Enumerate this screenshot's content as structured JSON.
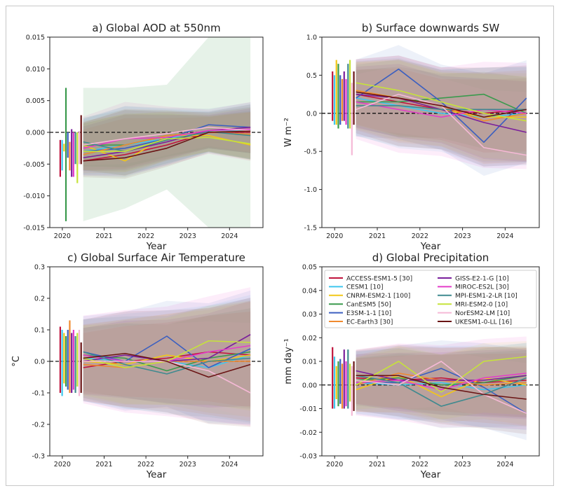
{
  "legend_entries": [
    {
      "name": "ACCESS-ESM1-5 [30]",
      "color": "#c0133c"
    },
    {
      "name": "CESM1 [10]",
      "color": "#3fc7ee"
    },
    {
      "name": "CNRM-ESM2-1 [100]",
      "color": "#f2c718"
    },
    {
      "name": "CanESM5 [50]",
      "color": "#3a9a4d"
    },
    {
      "name": "E3SM-1-1 [10]",
      "color": "#3b5fc0"
    },
    {
      "name": "EC-Earth3 [30]",
      "color": "#f08a2e"
    },
    {
      "name": "GISS-E2-1-G [10]",
      "color": "#7a1f9c"
    },
    {
      "name": "MIROC-ES2L [30]",
      "color": "#e43cc9"
    },
    {
      "name": "MPI-ESM1-2-LR [10]",
      "color": "#3f8a8f"
    },
    {
      "name": "MRI-ESM2-0 [10]",
      "color": "#c6e33a"
    },
    {
      "name": "NorESM2-LM [10]",
      "color": "#f5b9d6"
    },
    {
      "name": "UKESM1-0-LL [16]",
      "color": "#6a1414"
    }
  ],
  "chart_data": [
    {
      "type": "line",
      "title": "a)  Global AOD at 550nm",
      "xlabel": "Year",
      "ylabel": "",
      "xlim": [
        2019.7,
        2024.8
      ],
      "ylim": [
        -0.015,
        0.015
      ],
      "xticks": [
        "2020",
        "2021",
        "2022",
        "2023",
        "2024"
      ],
      "yticks": [
        "-0.015",
        "-0.010",
        "-0.005",
        "0.000",
        "0.005",
        "0.010",
        "0.015"
      ],
      "x": [
        2020.5,
        2021.5,
        2022.5,
        2023.5,
        2024.5
      ],
      "zero_line": true,
      "spread_center": [
        -0.002,
        -0.001,
        -0.0005,
        0.0,
        0.0
      ],
      "spread_halfwidth": [
        0.004,
        0.005,
        0.004,
        0.003,
        0.004
      ],
      "bars": [
        {
          "lo": -0.007,
          "hi": -0.0012
        },
        {
          "lo": -0.006,
          "hi": -0.0012
        },
        {
          "lo": -0.003,
          "hi": -0.0018
        },
        {
          "lo": -0.014,
          "hi": 0.007
        },
        {
          "lo": -0.004,
          "hi": 0.0
        },
        {
          "lo": -0.006,
          "hi": -0.0015
        },
        {
          "lo": -0.007,
          "hi": 0.0005
        },
        {
          "lo": -0.007,
          "hi": 0.0
        },
        {
          "lo": -0.005,
          "hi": 0.0
        },
        {
          "lo": -0.008,
          "hi": 0.0
        },
        {
          "lo": -0.005,
          "hi": 0.0002
        },
        {
          "lo": -0.005,
          "hi": 0.0027
        }
      ],
      "series": [
        {
          "values": [
            -0.0045,
            -0.0035,
            -0.002,
            0.0,
            0.0
          ]
        },
        {
          "values": [
            -0.003,
            -0.002,
            -0.001,
            0.0003,
            0.0004
          ]
        },
        {
          "values": [
            -0.002,
            -0.0045,
            -0.0005,
            -0.0005,
            -0.002
          ]
        },
        {
          "values": [
            -0.002,
            -0.002,
            -0.0005,
            0.0,
            0.0002
          ]
        },
        {
          "values": [
            -0.003,
            -0.0025,
            -0.001,
            0.0012,
            0.0008
          ]
        },
        {
          "values": [
            -0.0035,
            -0.002,
            -0.0005,
            0.0,
            -0.0003
          ]
        },
        {
          "values": [
            -0.004,
            -0.003,
            -0.0015,
            0.0003,
            0.0008
          ]
        },
        {
          "values": [
            -0.0025,
            -0.001,
            -0.0008,
            0.0003,
            0.0005
          ]
        },
        {
          "values": [
            -0.0015,
            -0.003,
            -0.0012,
            0.0001,
            -0.0005
          ]
        },
        {
          "values": [
            -0.003,
            -0.003,
            -0.001,
            -0.0008,
            -0.0018
          ]
        },
        {
          "values": [
            -0.002,
            -0.001,
            -0.0002,
            0.0008,
            0.0003
          ]
        },
        {
          "values": [
            -0.0045,
            -0.004,
            -0.0025,
            0.0,
            0.0002
          ]
        }
      ],
      "highlight_band": {
        "series_index": 3,
        "lower": [
          -0.014,
          -0.012,
          -0.009,
          -0.015,
          -0.015
        ],
        "upper": [
          0.007,
          0.007,
          0.0075,
          0.015,
          0.015
        ]
      }
    },
    {
      "type": "line",
      "title": "b)  Surface downwards SW",
      "xlabel": "Year",
      "ylabel": "W m⁻²",
      "xlim": [
        2019.7,
        2024.8
      ],
      "ylim": [
        -1.5,
        1.0
      ],
      "xticks": [
        "2020",
        "2021",
        "2022",
        "2023",
        "2024"
      ],
      "yticks": [
        "-1.5",
        "-1.0",
        "-0.5",
        "0.0",
        "0.5",
        "1.0"
      ],
      "x": [
        2020.5,
        2021.5,
        2022.5,
        2023.5,
        2024.5
      ],
      "zero_line": true,
      "spread_center": [
        0.2,
        0.15,
        0.05,
        -0.05,
        -0.05
      ],
      "spread_halfwidth": [
        0.45,
        0.55,
        0.5,
        0.6,
        0.6
      ],
      "bars": [
        {
          "lo": -0.1,
          "hi": 0.55
        },
        {
          "lo": -0.15,
          "hi": 0.5
        },
        {
          "lo": -0.15,
          "hi": 0.7
        },
        {
          "lo": -0.2,
          "hi": 0.65
        },
        {
          "lo": -0.15,
          "hi": 0.5
        },
        {
          "lo": -0.1,
          "hi": 0.45
        },
        {
          "lo": -0.1,
          "hi": 0.55
        },
        {
          "lo": -0.15,
          "hi": 0.45
        },
        {
          "lo": -0.2,
          "hi": 0.65
        },
        {
          "lo": -0.2,
          "hi": 0.7
        },
        {
          "lo": -0.55,
          "hi": 0.4
        },
        {
          "lo": -0.15,
          "hi": 0.55
        }
      ],
      "series": [
        {
          "values": [
            0.25,
            0.15,
            0.05,
            0.0,
            0.05
          ]
        },
        {
          "values": [
            0.2,
            0.1,
            0.0,
            -0.05,
            0.0
          ]
        },
        {
          "values": [
            0.3,
            0.2,
            0.05,
            -0.05,
            -0.05
          ]
        },
        {
          "values": [
            0.15,
            0.15,
            0.2,
            0.25,
            0.0
          ]
        },
        {
          "values": [
            0.2,
            0.58,
            0.15,
            -0.38,
            0.2
          ]
        },
        {
          "values": [
            0.3,
            0.2,
            0.1,
            -0.1,
            0.0
          ]
        },
        {
          "values": [
            0.25,
            0.2,
            0.05,
            -0.12,
            -0.25
          ]
        },
        {
          "values": [
            0.15,
            0.05,
            -0.05,
            0.05,
            0.0
          ]
        },
        {
          "values": [
            0.1,
            0.1,
            0.05,
            0.05,
            0.05
          ]
        },
        {
          "values": [
            0.4,
            0.3,
            0.15,
            0.0,
            -0.1
          ]
        },
        {
          "values": [
            0.05,
            0.25,
            0.1,
            -0.45,
            -0.55
          ]
        },
        {
          "values": [
            0.28,
            0.2,
            0.1,
            -0.05,
            0.05
          ]
        }
      ]
    },
    {
      "type": "line",
      "title": "c)  Global Surface Air Temperature",
      "xlabel": "Year",
      "ylabel": "°C",
      "xlim": [
        2019.7,
        2024.8
      ],
      "ylim": [
        -0.3,
        0.3
      ],
      "xticks": [
        "2020",
        "2021",
        "2022",
        "2023",
        "2024"
      ],
      "yticks": [
        "-0.3",
        "-0.2",
        "-0.1",
        "0.0",
        "0.1",
        "0.2",
        "0.3"
      ],
      "x": [
        2020.5,
        2021.5,
        2022.5,
        2023.5,
        2024.5
      ],
      "zero_line": true,
      "spread_center": [
        0.0,
        0.0,
        0.0,
        0.0,
        0.0
      ],
      "spread_halfwidth": [
        0.12,
        0.14,
        0.15,
        0.17,
        0.19
      ],
      "bars": [
        {
          "lo": -0.1,
          "hi": 0.11
        },
        {
          "lo": -0.11,
          "hi": 0.1
        },
        {
          "lo": -0.07,
          "hi": 0.09
        },
        {
          "lo": -0.08,
          "hi": 0.08
        },
        {
          "lo": -0.09,
          "hi": 0.1
        },
        {
          "lo": -0.1,
          "hi": 0.13
        },
        {
          "lo": -0.1,
          "hi": 0.09
        },
        {
          "lo": -0.09,
          "hi": 0.1
        },
        {
          "lo": -0.1,
          "hi": 0.08
        },
        {
          "lo": -0.08,
          "hi": 0.09
        },
        {
          "lo": -0.11,
          "hi": 0.1
        },
        {
          "lo": -0.1,
          "hi": 0.06
        }
      ],
      "series": [
        {
          "values": [
            -0.02,
            0.0,
            0.01,
            0.03,
            0.02
          ]
        },
        {
          "values": [
            0.01,
            0.0,
            0.0,
            -0.02,
            0.02
          ]
        },
        {
          "values": [
            0.0,
            -0.01,
            0.02,
            0.0,
            0.02
          ]
        },
        {
          "values": [
            0.02,
            0.01,
            -0.03,
            0.01,
            0.03
          ]
        },
        {
          "values": [
            0.03,
            0.0,
            0.08,
            -0.02,
            0.04
          ]
        },
        {
          "values": [
            -0.01,
            -0.02,
            0.0,
            0.0,
            0.0
          ]
        },
        {
          "values": [
            0.0,
            0.02,
            0.0,
            0.01,
            0.085
          ]
        },
        {
          "values": [
            0.02,
            0.0,
            0.0,
            0.03,
            0.05
          ]
        },
        {
          "values": [
            0.03,
            -0.01,
            -0.04,
            0.0,
            0.01
          ]
        },
        {
          "values": [
            0.01,
            -0.02,
            0.0,
            0.065,
            0.06
          ]
        },
        {
          "values": [
            0.0,
            0.0,
            0.0,
            -0.03,
            -0.1
          ]
        },
        {
          "values": [
            0.01,
            0.025,
            0.0,
            -0.05,
            -0.01
          ]
        }
      ]
    },
    {
      "type": "line",
      "title": "d)  Global Precipitation",
      "xlabel": "Year",
      "ylabel": "mm day⁻¹",
      "xlim": [
        2019.7,
        2024.8
      ],
      "ylim": [
        -0.03,
        0.05
      ],
      "xticks": [
        "2020",
        "2021",
        "2022",
        "2023",
        "2024"
      ],
      "yticks": [
        "-0.03",
        "-0.02",
        "-0.01",
        "0.00",
        "0.01",
        "0.02",
        "0.03",
        "0.04",
        "0.05"
      ],
      "x": [
        2020.5,
        2021.5,
        2022.5,
        2023.5,
        2024.5
      ],
      "zero_line": true,
      "spread_center": [
        0.001,
        0.001,
        0.0,
        0.0,
        -0.001
      ],
      "spread_halfwidth": [
        0.012,
        0.014,
        0.015,
        0.016,
        0.017
      ],
      "bars": [
        {
          "lo": -0.01,
          "hi": 0.016
        },
        {
          "lo": -0.01,
          "hi": 0.012
        },
        {
          "lo": -0.006,
          "hi": 0.008
        },
        {
          "lo": -0.009,
          "hi": 0.01
        },
        {
          "lo": -0.008,
          "hi": 0.011
        },
        {
          "lo": -0.01,
          "hi": 0.009
        },
        {
          "lo": -0.01,
          "hi": 0.015
        },
        {
          "lo": -0.009,
          "hi": 0.01
        },
        {
          "lo": -0.01,
          "hi": 0.015
        },
        {
          "lo": -0.007,
          "hi": 0.009
        },
        {
          "lo": -0.013,
          "hi": 0.008
        },
        {
          "lo": -0.011,
          "hi": 0.01
        }
      ],
      "series": [
        {
          "values": [
            0.003,
            0.002,
            0.003,
            0.001,
            0.002
          ]
        },
        {
          "values": [
            0.001,
            0.0,
            0.001,
            -0.002,
            0.0
          ]
        },
        {
          "values": [
            -0.002,
            0.004,
            -0.005,
            0.003,
            0.0
          ]
        },
        {
          "values": [
            0.002,
            0.003,
            0.0,
            0.001,
            0.004
          ]
        },
        {
          "values": [
            0.001,
            0.001,
            0.007,
            -0.001,
            -0.012
          ]
        },
        {
          "values": [
            0.0,
            0.005,
            0.002,
            0.0,
            0.001
          ]
        },
        {
          "values": [
            0.006,
            0.002,
            0.002,
            0.002,
            0.004
          ]
        },
        {
          "values": [
            0.001,
            0.002,
            -0.002,
            0.003,
            0.005
          ]
        },
        {
          "values": [
            0.004,
            0.001,
            -0.009,
            -0.004,
            0.003
          ]
        },
        {
          "values": [
            0.0,
            0.01,
            -0.003,
            0.01,
            0.012
          ]
        },
        {
          "values": [
            0.002,
            0.0,
            0.01,
            -0.004,
            -0.012
          ]
        },
        {
          "values": [
            0.004,
            0.004,
            -0.001,
            -0.004,
            -0.006
          ]
        }
      ]
    }
  ]
}
